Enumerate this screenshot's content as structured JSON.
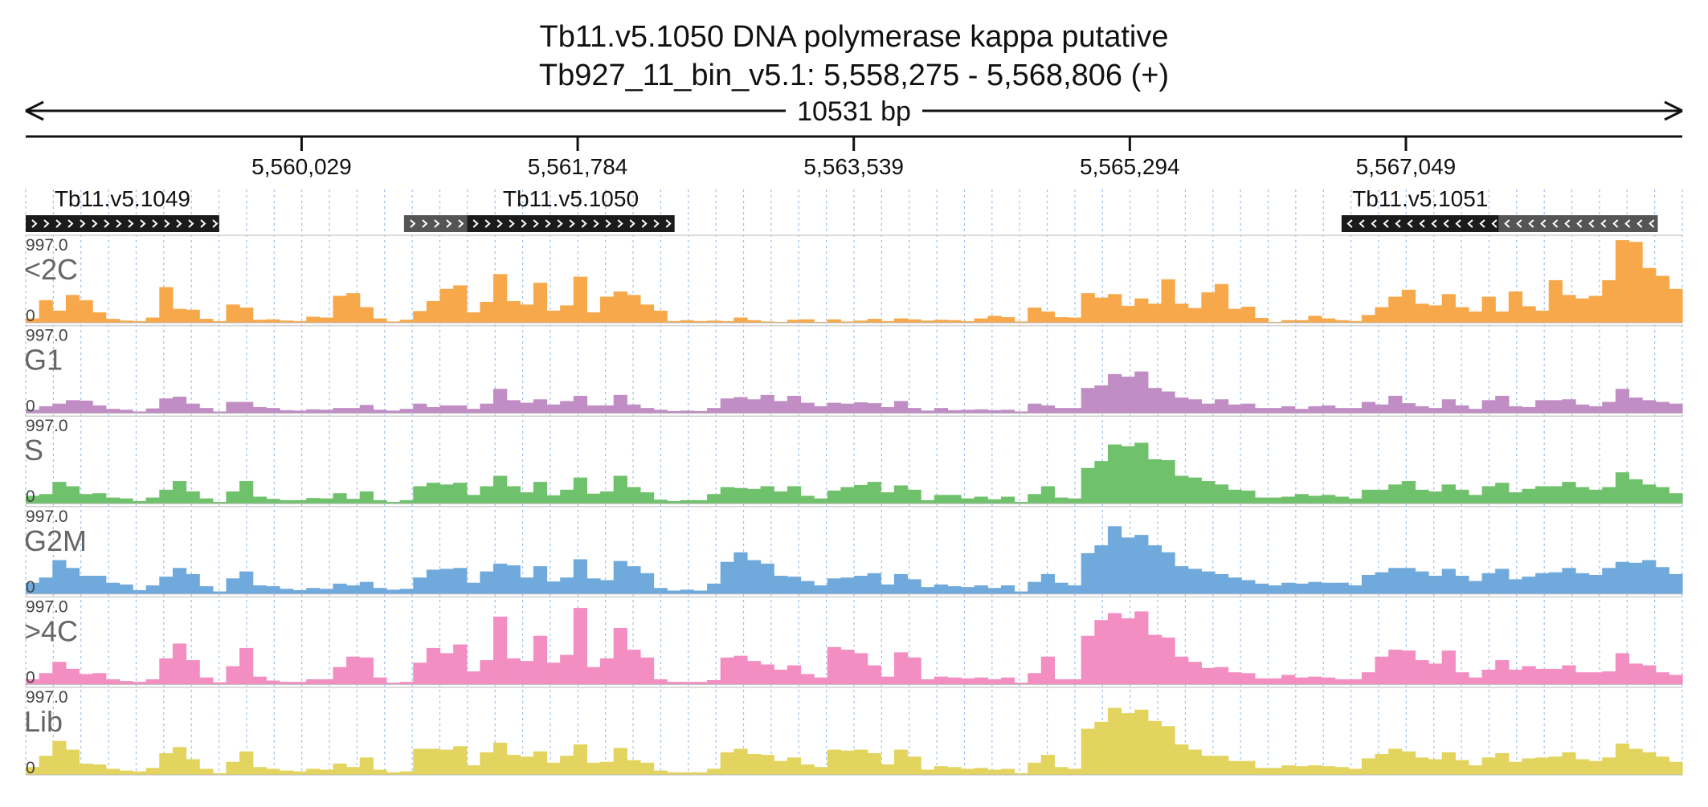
{
  "chart_data": {
    "type": "area",
    "title": "Tb11.v5.1050  DNA polymerase kappa  putative",
    "subtitle": "Tb927_11_bin_v5.1: 5,558,275 - 5,568,806 (+)",
    "span_label": "10531 bp",
    "region": {
      "chrom": "Tb927_11_bin_v5.1",
      "start": 5558275,
      "end": 5568806,
      "strand": "+"
    },
    "ticks": [
      {
        "pos": 5560029,
        "label": "5,560,029"
      },
      {
        "pos": 5561784,
        "label": "5,561,784"
      },
      {
        "pos": 5563539,
        "label": "5,563,539"
      },
      {
        "pos": 5565294,
        "label": "5,565,294"
      },
      {
        "pos": 5567049,
        "label": "5,567,049"
      }
    ],
    "genes": [
      {
        "name": "Tb11.v5.1049",
        "strand": "+",
        "utr": null,
        "cds": [
          5558275,
          5559505
        ]
      },
      {
        "name": "Tb11.v5.1050",
        "strand": "+",
        "utr": [
          5560680,
          5561080
        ],
        "cds": [
          5561080,
          5562400
        ]
      },
      {
        "name": "Tb11.v5.1051",
        "strand": "-",
        "utr": [
          5567640,
          5568650
        ],
        "cds": [
          5566640,
          5567640
        ]
      }
    ],
    "ylim": [
      0,
      997.0
    ],
    "ymax_label": "997.0",
    "ymin_label": "0",
    "series": [
      {
        "name": "<2C",
        "color": "#f7a84a",
        "values": [
          50,
          260,
          140,
          320,
          260,
          120,
          45,
          25,
          20,
          60,
          410,
          160,
          150,
          45,
          20,
          210,
          175,
          35,
          40,
          25,
          20,
          70,
          60,
          310,
          340,
          180,
          50,
          15,
          35,
          135,
          250,
          390,
          430,
          120,
          240,
          560,
          250,
          210,
          460,
          140,
          200,
          530,
          120,
          300,
          360,
          320,
          210,
          140,
          20,
          30,
          20,
          25,
          20,
          60,
          30,
          15,
          10,
          35,
          40,
          10,
          40,
          15,
          25,
          45,
          20,
          50,
          40,
          25,
          35,
          30,
          20,
          50,
          80,
          65,
          15,
          175,
          130,
          65,
          60,
          340,
          290,
          330,
          195,
          280,
          220,
          500,
          220,
          170,
          350,
          445,
          160,
          185,
          55,
          10,
          30,
          30,
          80,
          50,
          30,
          20,
          90,
          180,
          300,
          380,
          220,
          200,
          330,
          180,
          130,
          300,
          130,
          360,
          190,
          140,
          490,
          320,
          280,
          310,
          490,
          950,
          930,
          630,
          540,
          390
        ]
      },
      {
        "name": "G1",
        "color": "#c08dc4",
        "values": [
          40,
          80,
          110,
          150,
          145,
          90,
          50,
          40,
          20,
          55,
          170,
          190,
          110,
          60,
          20,
          130,
          130,
          70,
          60,
          35,
          30,
          45,
          40,
          60,
          60,
          95,
          40,
          30,
          50,
          110,
          70,
          90,
          90,
          50,
          110,
          280,
          150,
          120,
          160,
          100,
          140,
          200,
          90,
          90,
          210,
          100,
          60,
          40,
          25,
          30,
          25,
          60,
          170,
          185,
          160,
          210,
          140,
          200,
          120,
          80,
          120,
          110,
          125,
          115,
          70,
          140,
          60,
          30,
          60,
          35,
          40,
          45,
          35,
          40,
          20,
          110,
          90,
          60,
          60,
          290,
          320,
          450,
          420,
          480,
          290,
          250,
          180,
          160,
          110,
          160,
          100,
          110,
          60,
          60,
          80,
          50,
          80,
          90,
          60,
          60,
          130,
          100,
          200,
          115,
          80,
          60,
          160,
          90,
          50,
          150,
          200,
          80,
          70,
          150,
          150,
          160,
          100,
          80,
          130,
          280,
          180,
          150,
          130,
          110
        ]
      },
      {
        "name": "S",
        "color": "#70c16c",
        "values": [
          90,
          110,
          250,
          200,
          110,
          120,
          70,
          60,
          30,
          70,
          160,
          260,
          140,
          60,
          20,
          140,
          260,
          80,
          55,
          40,
          40,
          65,
          60,
          120,
          55,
          140,
          40,
          20,
          40,
          200,
          240,
          220,
          240,
          100,
          200,
          320,
          200,
          130,
          250,
          95,
          160,
          300,
          115,
          140,
          320,
          190,
          130,
          45,
          30,
          40,
          40,
          110,
          190,
          180,
          170,
          200,
          140,
          200,
          90,
          60,
          150,
          190,
          215,
          250,
          130,
          210,
          160,
          40,
          100,
          100,
          60,
          80,
          50,
          80,
          20,
          110,
          200,
          70,
          60,
          410,
          490,
          680,
          660,
          700,
          510,
          500,
          320,
          300,
          260,
          220,
          160,
          150,
          70,
          70,
          80,
          110,
          90,
          100,
          80,
          60,
          160,
          160,
          220,
          260,
          160,
          140,
          220,
          160,
          100,
          200,
          240,
          130,
          170,
          200,
          200,
          250,
          190,
          160,
          190,
          360,
          280,
          220,
          190,
          120
        ]
      },
      {
        "name": "G2M",
        "color": "#70aadc",
        "values": [
          130,
          190,
          390,
          300,
          210,
          210,
          130,
          110,
          45,
          100,
          200,
          300,
          230,
          90,
          30,
          180,
          260,
          100,
          90,
          60,
          45,
          70,
          60,
          120,
          100,
          140,
          70,
          50,
          60,
          190,
          280,
          290,
          300,
          130,
          260,
          350,
          330,
          190,
          320,
          145,
          190,
          400,
          180,
          160,
          380,
          320,
          240,
          70,
          40,
          50,
          40,
          120,
          370,
          480,
          390,
          350,
          210,
          200,
          150,
          100,
          180,
          190,
          210,
          240,
          110,
          230,
          170,
          80,
          110,
          90,
          80,
          100,
          70,
          100,
          30,
          140,
          230,
          130,
          100,
          470,
          560,
          780,
          650,
          680,
          560,
          480,
          320,
          290,
          260,
          230,
          190,
          160,
          120,
          100,
          130,
          120,
          140,
          130,
          130,
          100,
          220,
          250,
          300,
          300,
          260,
          210,
          290,
          210,
          150,
          240,
          290,
          170,
          200,
          240,
          250,
          300,
          240,
          220,
          300,
          370,
          360,
          390,
          310,
          230
        ]
      },
      {
        "name": ">4C",
        "color": "#f28ec1",
        "values": [
          60,
          130,
          260,
          180,
          120,
          130,
          60,
          40,
          30,
          60,
          300,
          470,
          280,
          80,
          25,
          210,
          420,
          90,
          45,
          30,
          30,
          60,
          60,
          200,
          320,
          310,
          80,
          20,
          30,
          250,
          420,
          360,
          460,
          150,
          280,
          780,
          300,
          270,
          560,
          250,
          340,
          880,
          200,
          300,
          650,
          400,
          310,
          60,
          30,
          30,
          30,
          50,
          310,
          330,
          270,
          230,
          170,
          220,
          120,
          80,
          430,
          400,
          360,
          220,
          90,
          370,
          310,
          60,
          90,
          80,
          70,
          80,
          60,
          80,
          20,
          130,
          320,
          60,
          60,
          560,
          740,
          820,
          760,
          840,
          570,
          540,
          320,
          260,
          190,
          200,
          140,
          130,
          70,
          70,
          110,
          80,
          90,
          80,
          60,
          60,
          140,
          320,
          400,
          390,
          280,
          240,
          390,
          140,
          80,
          170,
          280,
          170,
          210,
          180,
          180,
          220,
          140,
          140,
          150,
          360,
          240,
          220,
          140,
          110
        ]
      },
      {
        "name": "Lib",
        "color": "#e3d45f",
        "values": [
          90,
          220,
          390,
          290,
          130,
          120,
          70,
          50,
          40,
          80,
          250,
          320,
          180,
          70,
          20,
          150,
          270,
          90,
          70,
          50,
          40,
          70,
          60,
          130,
          90,
          200,
          60,
          30,
          40,
          300,
          300,
          290,
          330,
          110,
          260,
          370,
          230,
          210,
          270,
          140,
          220,
          350,
          140,
          150,
          310,
          170,
          140,
          50,
          30,
          30,
          30,
          70,
          260,
          300,
          240,
          230,
          160,
          200,
          120,
          90,
          290,
          280,
          290,
          250,
          120,
          290,
          210,
          60,
          100,
          90,
          70,
          80,
          60,
          70,
          20,
          140,
          230,
          90,
          70,
          530,
          610,
          770,
          710,
          750,
          620,
          560,
          350,
          290,
          220,
          220,
          160,
          160,
          80,
          80,
          110,
          100,
          110,
          100,
          90,
          70,
          190,
          240,
          300,
          270,
          200,
          180,
          260,
          170,
          110,
          200,
          250,
          150,
          190,
          200,
          210,
          260,
          180,
          160,
          200,
          360,
          300,
          260,
          210,
          150
        ]
      }
    ]
  }
}
